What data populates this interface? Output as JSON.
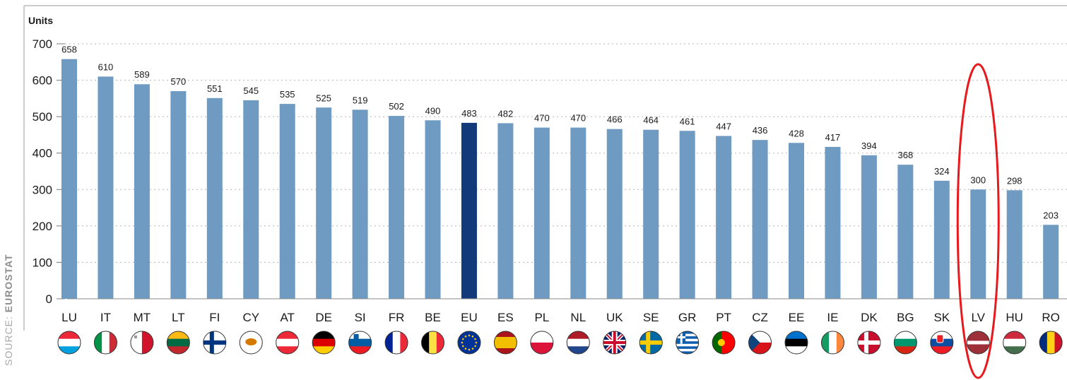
{
  "source": {
    "prefix": "SOURCE:",
    "name": "EUROSTAT"
  },
  "chart_data": {
    "type": "bar",
    "ylabel": "Units",
    "ylim": [
      0,
      700
    ],
    "yticks": [
      0,
      100,
      200,
      300,
      400,
      500,
      600,
      700
    ],
    "grid": true,
    "categories": [
      "LU",
      "IT",
      "MT",
      "LT",
      "FI",
      "CY",
      "AT",
      "DE",
      "SI",
      "FR",
      "BE",
      "EU",
      "ES",
      "PL",
      "NL",
      "UK",
      "SE",
      "GR",
      "PT",
      "CZ",
      "EE",
      "IE",
      "DK",
      "BG",
      "SK",
      "LV",
      "HU",
      "RO"
    ],
    "values": [
      658,
      610,
      589,
      570,
      551,
      545,
      535,
      525,
      519,
      502,
      490,
      483,
      482,
      470,
      470,
      466,
      464,
      461,
      447,
      436,
      428,
      417,
      394,
      368,
      324,
      300,
      298,
      203
    ],
    "highlight_bar": "EU",
    "circled_category": "LV",
    "flag_icons": [
      "luxembourg-flag-icon",
      "italy-flag-icon",
      "malta-flag-icon",
      "lithuania-flag-icon",
      "finland-flag-icon",
      "cyprus-flag-icon",
      "austria-flag-icon",
      "germany-flag-icon",
      "slovenia-flag-icon",
      "france-flag-icon",
      "belgium-flag-icon",
      "eu-flag-icon",
      "spain-flag-icon",
      "poland-flag-icon",
      "netherlands-flag-icon",
      "uk-flag-icon",
      "sweden-flag-icon",
      "greece-flag-icon",
      "portugal-flag-icon",
      "czechia-flag-icon",
      "estonia-flag-icon",
      "ireland-flag-icon",
      "denmark-flag-icon",
      "bulgaria-flag-icon",
      "slovakia-flag-icon",
      "latvia-flag-icon",
      "hungary-flag-icon",
      "romania-flag-icon"
    ]
  },
  "colors": {
    "bar": "#6f9bc3",
    "bar_highlight": "#123a7a",
    "grid": "#b5b5b5",
    "axis": "#7a7a7a",
    "text": "#1a1a1a",
    "annotation": "#e8191c"
  }
}
